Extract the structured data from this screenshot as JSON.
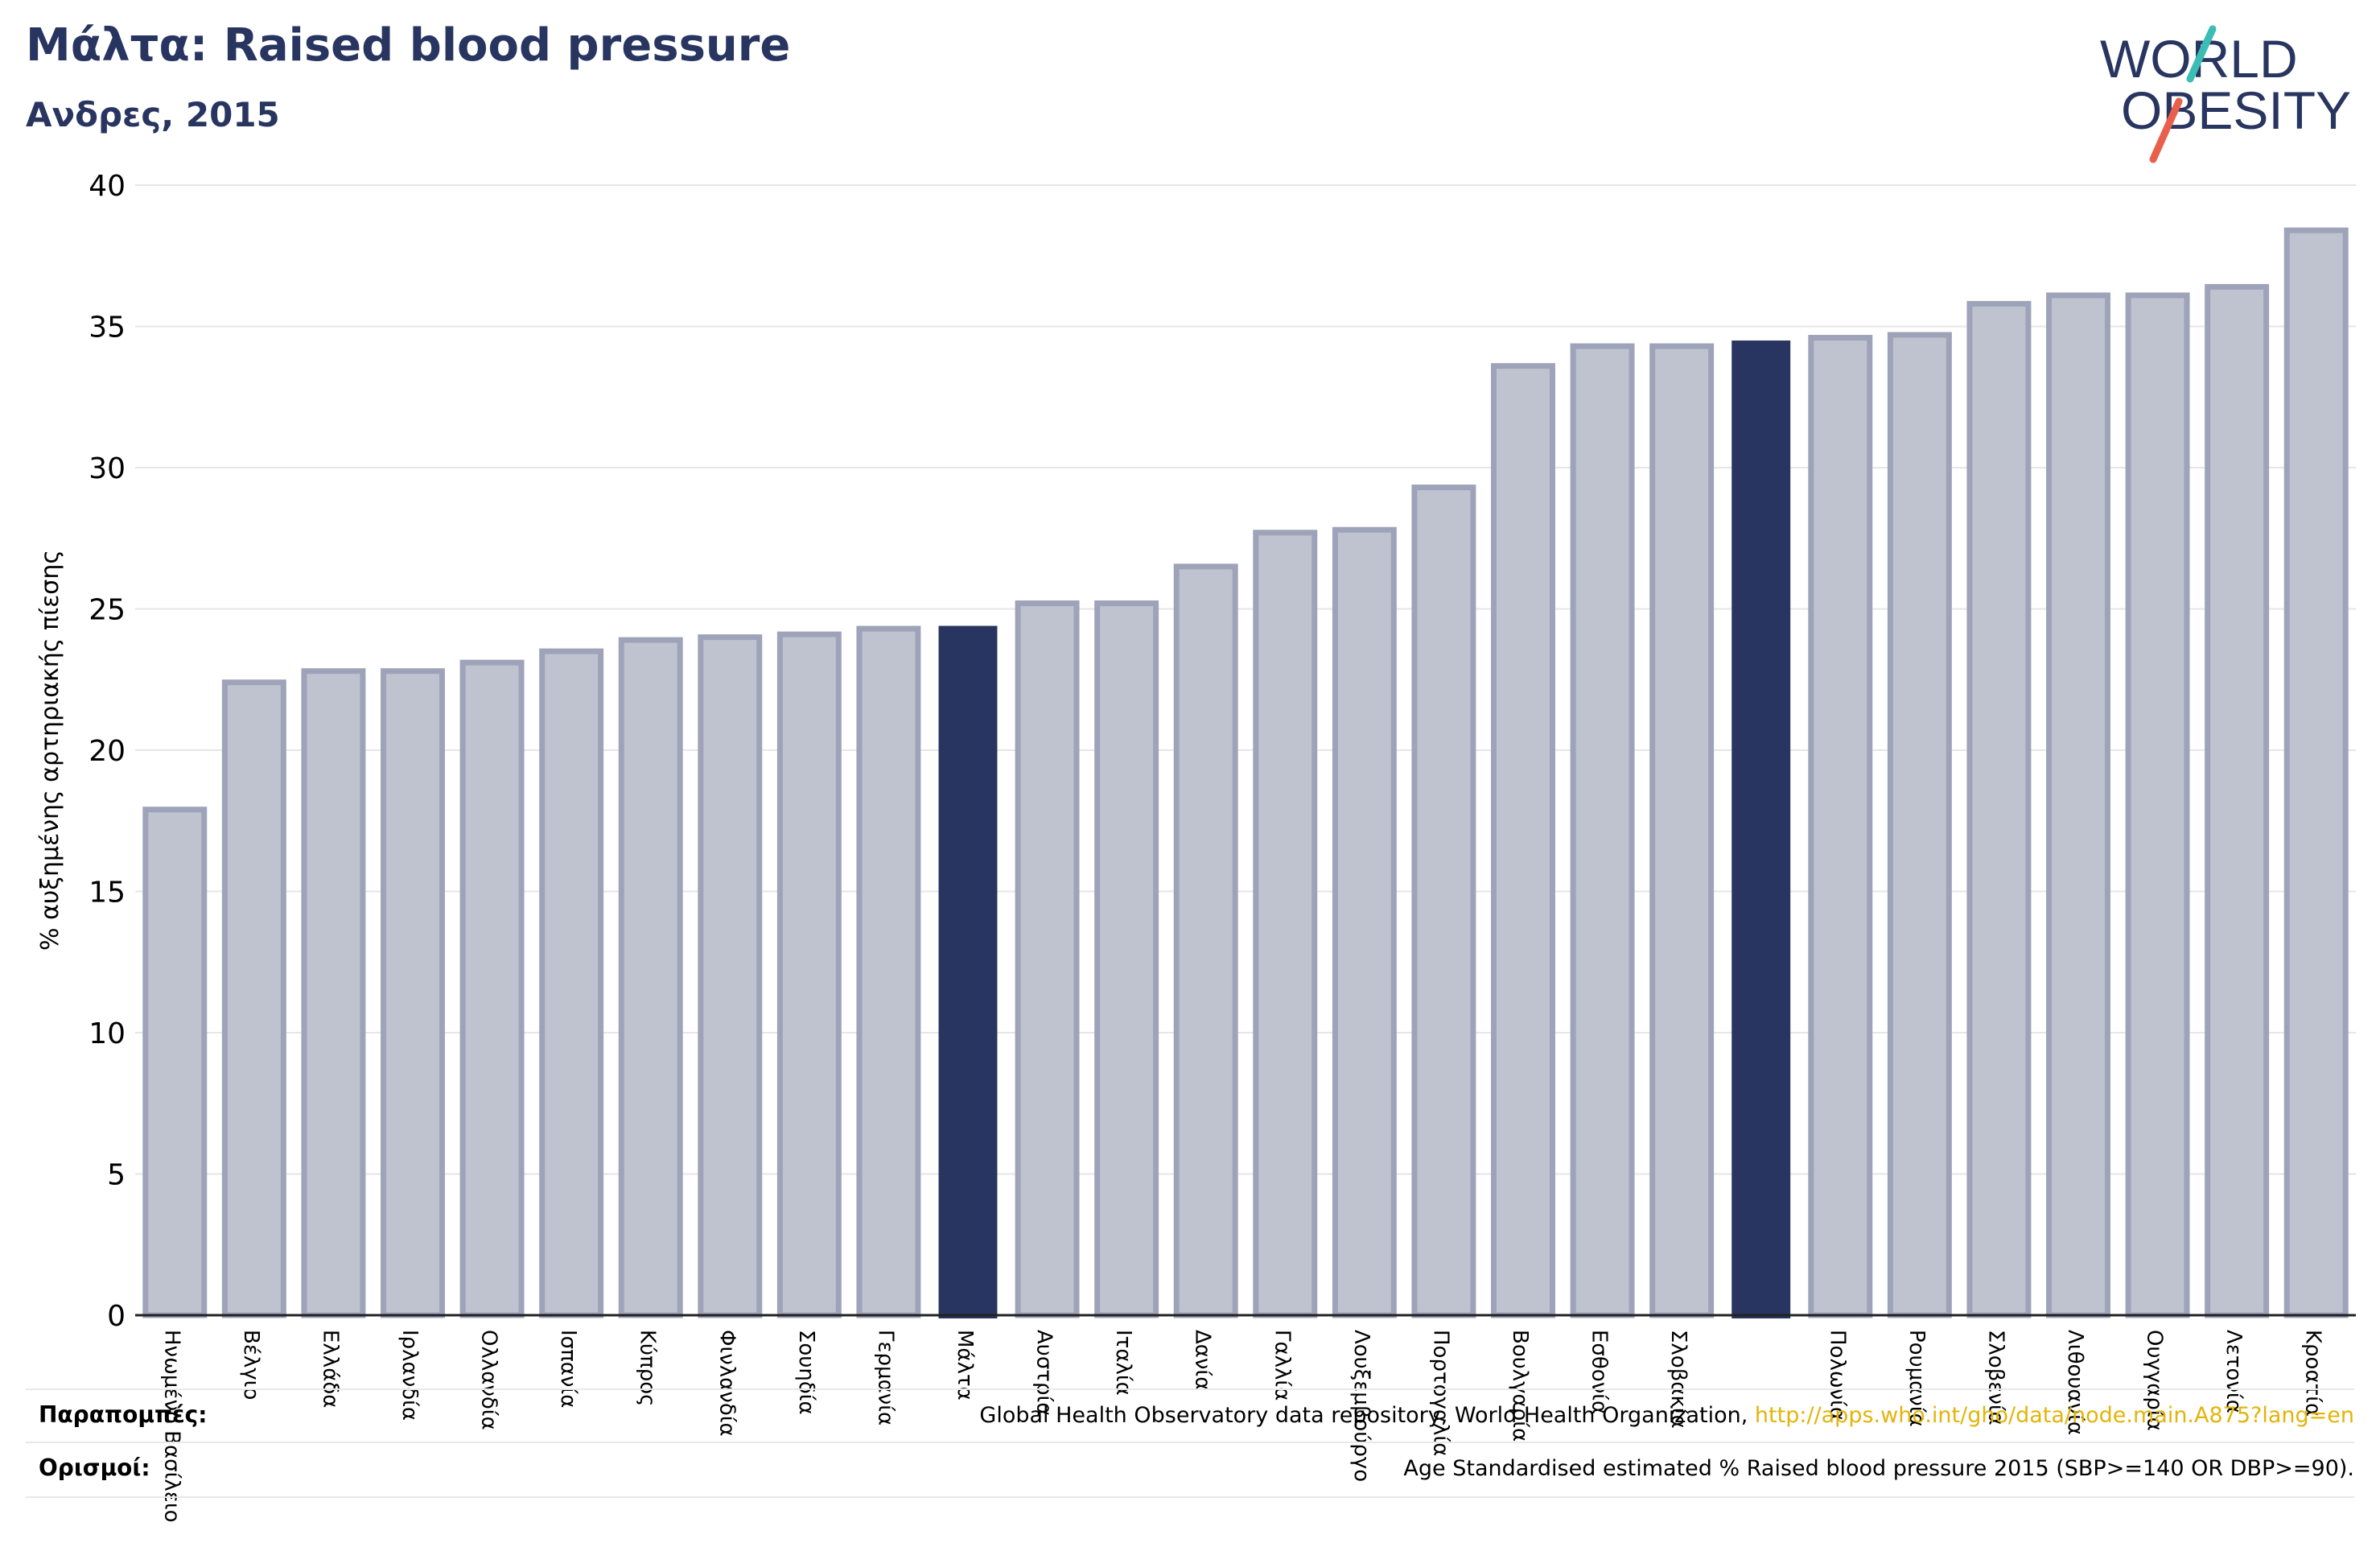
{
  "header": {
    "title": "Μάλτα: Raised blood pressure",
    "subtitle": "Ανδρες, 2015"
  },
  "logo": {
    "line1": "WORLD",
    "line2": "OBESITY"
  },
  "colors": {
    "highlight": "#283560",
    "bar_fill": "#bfc2cf",
    "bar_stroke": "#9ea3b9",
    "link": "#e3b40a",
    "logo_slash_top": "#3bbdb5",
    "logo_slash_bottom": "#e8604c"
  },
  "chart_data": {
    "type": "bar",
    "ylabel": "% αυξημένης αρτηριακής πίεσης",
    "ylim": [
      0,
      40
    ],
    "yticks": [
      0,
      5,
      10,
      15,
      20,
      25,
      30,
      35,
      40
    ],
    "grid": true,
    "categories": [
      "Ηνωμένο Βασίλειο",
      "Βέλγιο",
      "Ελλάδα",
      "Ιρλανδία",
      "Ολλανδία",
      "Ισπανία",
      "Κύπρος",
      "Φινλανδία",
      "Σουηδία",
      "Γερμανία",
      "Μάλτα",
      "Αυστρία",
      "Ιταλία",
      "Δανία",
      "Γαλλία",
      "Λουξεμβούργο",
      "Πορτογαλία",
      "Βουλγαρία",
      "Εσθονία",
      "Σλοβακία",
      "",
      "Πολωνία",
      "Ρουμανία",
      "Σλοβενία",
      "Λιθουανία",
      "Ουγγαρία",
      "Λετονία",
      "Κροατία"
    ],
    "values": [
      17.9,
      22.4,
      22.8,
      22.8,
      23.1,
      23.5,
      23.9,
      24.0,
      24.1,
      24.3,
      24.4,
      25.2,
      25.2,
      26.5,
      27.7,
      27.8,
      29.3,
      33.6,
      34.3,
      34.3,
      34.5,
      34.6,
      34.7,
      35.8,
      36.1,
      36.1,
      36.4,
      38.4
    ],
    "highlighted": [
      10,
      20
    ]
  },
  "footer": {
    "references_label": "Παραπομπές:",
    "references_text": "Global Health Observatory data repository, World Health Organization,",
    "references_link": "http://apps.who.int/gho/data/node.main.A875?lang=en",
    "definitions_label": "Ορισμοί:",
    "definitions_text": "Age Standardised estimated % Raised blood pressure 2015 (SBP>=140 OR DBP>=90)."
  }
}
